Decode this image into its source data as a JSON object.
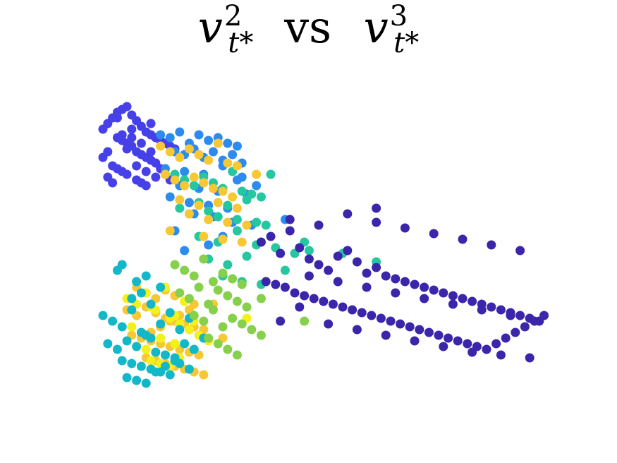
{
  "chart_data": {
    "type": "scatter",
    "title": "",
    "title_parts": {
      "left_var": "v",
      "left_sup": "2",
      "left_sub": "t*",
      "middle": "vs",
      "right_var": "v",
      "right_sup": "3",
      "right_sub": "t*"
    },
    "xlabel": "",
    "ylabel": "",
    "xlim": [
      0,
      100
    ],
    "ylim": [
      0,
      100
    ],
    "grid": false,
    "legend": "none",
    "series": [
      {
        "color": "#4640e8",
        "x": [
          5,
          6,
          7,
          8,
          9,
          10,
          11,
          12,
          13,
          14,
          15,
          16,
          17,
          18,
          19,
          20,
          8,
          9,
          10,
          11,
          12,
          13,
          14,
          15,
          16,
          7,
          8,
          9,
          10,
          12,
          13,
          14,
          5,
          6,
          11,
          15,
          17,
          18,
          9,
          10,
          12,
          14,
          16,
          19,
          8,
          11,
          13,
          6,
          7,
          15
        ],
        "y": [
          88,
          90,
          92,
          94,
          95,
          96,
          93,
          91,
          89,
          87,
          86,
          85,
          84,
          83,
          82,
          81,
          85,
          84,
          83,
          82,
          80,
          79,
          78,
          77,
          76,
          75,
          74,
          73,
          72,
          70,
          69,
          68,
          78,
          80,
          88,
          90,
          74,
          72,
          86,
          81,
          75,
          73,
          71,
          70,
          92,
          85,
          83,
          71,
          69,
          80
        ]
      },
      {
        "color": "#2d8bf0",
        "x": [
          17,
          19,
          21,
          23,
          25,
          27,
          29,
          31,
          33,
          20,
          22,
          24,
          26,
          28,
          30,
          32,
          34,
          18,
          22,
          26,
          30,
          34,
          21,
          25,
          29,
          33,
          19,
          23,
          27,
          31,
          35,
          24,
          28,
          32,
          36,
          20,
          30,
          37,
          43,
          27,
          22
        ],
        "y": [
          86,
          85,
          87,
          83,
          86,
          84,
          85,
          83,
          82,
          80,
          79,
          81,
          78,
          80,
          77,
          79,
          76,
          74,
          73,
          72,
          75,
          71,
          68,
          67,
          66,
          70,
          64,
          62,
          61,
          60,
          65,
          58,
          57,
          55,
          54,
          52,
          50,
          68,
          56,
          47,
          45
        ]
      },
      {
        "color": "#25c7a0",
        "x": [
          20,
          22,
          24,
          26,
          28,
          30,
          32,
          34,
          36,
          38,
          40,
          21,
          23,
          25,
          27,
          29,
          31,
          33,
          35,
          37,
          39,
          25,
          29,
          33,
          37,
          41,
          45,
          48,
          27,
          31,
          35,
          43,
          47,
          55,
          62,
          30,
          34,
          38
        ],
        "y": [
          72,
          70,
          68,
          71,
          69,
          67,
          73,
          66,
          65,
          64,
          72,
          60,
          58,
          62,
          59,
          57,
          61,
          56,
          63,
          55,
          54,
          50,
          48,
          52,
          47,
          46,
          44,
          45,
          42,
          40,
          43,
          38,
          48,
          44,
          41,
          36,
          34,
          33
        ]
      },
      {
        "color": "#f7c734",
        "x": [
          17,
          19,
          21,
          23,
          25,
          27,
          29,
          31,
          33,
          18,
          20,
          22,
          24,
          26,
          28,
          30,
          32,
          21,
          25,
          29,
          33,
          37,
          23,
          27,
          31,
          35,
          19,
          26,
          30,
          34,
          12,
          14,
          16,
          18,
          20,
          22,
          24,
          10,
          12,
          14,
          16,
          18,
          20,
          22,
          24,
          26,
          11,
          13,
          15,
          17,
          19,
          21,
          23,
          25,
          14,
          16,
          18,
          20,
          22,
          24,
          26,
          15,
          17,
          19,
          21,
          23,
          28,
          20,
          30
        ],
        "y": [
          82,
          80,
          78,
          81,
          79,
          77,
          83,
          76,
          75,
          72,
          70,
          68,
          71,
          69,
          67,
          66,
          64,
          63,
          61,
          62,
          60,
          72,
          58,
          56,
          55,
          54,
          52,
          50,
          49,
          48,
          32,
          30,
          28,
          31,
          29,
          27,
          26,
          24,
          22,
          25,
          23,
          21,
          20,
          19,
          18,
          17,
          15,
          14,
          13,
          12,
          11,
          10,
          9,
          8,
          7,
          6,
          5,
          4,
          3,
          2,
          1,
          16,
          18,
          20,
          22,
          24,
          26,
          12,
          14
        ]
      },
      {
        "color": "#f4f01a",
        "x": [
          10,
          12,
          14,
          16,
          18,
          20,
          22,
          24,
          11,
          13,
          15,
          17,
          19,
          21,
          23,
          25,
          27,
          12,
          14,
          16,
          18,
          20,
          15,
          17,
          19,
          21,
          35
        ],
        "y": [
          28,
          26,
          30,
          24,
          32,
          22,
          27,
          20,
          18,
          16,
          25,
          14,
          21,
          19,
          17,
          15,
          13,
          11,
          10,
          9,
          8,
          12,
          6,
          5,
          4,
          7,
          21
        ]
      },
      {
        "color": "#12b7c8",
        "x": [
          5,
          7,
          9,
          11,
          13,
          15,
          17,
          19,
          21,
          23,
          6,
          8,
          10,
          12,
          14,
          16,
          18,
          20,
          22,
          24,
          9,
          11,
          13,
          15,
          17,
          19,
          21,
          23,
          10,
          12,
          14,
          16,
          18,
          20,
          11,
          13,
          15,
          17,
          12,
          14,
          8,
          26,
          9
        ],
        "y": [
          22,
          20,
          18,
          24,
          16,
          14,
          19,
          23,
          17,
          21,
          12,
          10,
          13,
          11,
          15,
          9,
          8,
          7,
          12,
          10,
          6,
          5,
          4,
          3,
          2,
          1,
          5,
          3,
          0,
          -1,
          -2,
          2,
          4,
          6,
          28,
          30,
          26,
          32,
          34,
          36,
          38,
          14,
          40
        ]
      },
      {
        "color": "#86d04c",
        "x": [
          20,
          22,
          24,
          26,
          28,
          30,
          32,
          34,
          21,
          23,
          25,
          27,
          29,
          31,
          33,
          35,
          24,
          26,
          28,
          30,
          32,
          34,
          36,
          38,
          27,
          29,
          31,
          33,
          38,
          47
        ],
        "y": [
          40,
          38,
          36,
          42,
          34,
          37,
          35,
          33,
          30,
          28,
          32,
          26,
          31,
          29,
          27,
          25,
          22,
          20,
          24,
          18,
          21,
          19,
          17,
          15,
          14,
          12,
          10,
          8,
          28,
          20
        ]
      },
      {
        "color": "#3b25aa",
        "x": [
          38,
          40,
          42,
          44,
          46,
          48,
          50,
          52,
          54,
          56,
          58,
          60,
          62,
          64,
          66,
          68,
          70,
          72,
          74,
          76,
          78,
          80,
          82,
          84,
          86,
          88,
          90,
          92,
          94,
          96,
          39,
          41,
          43,
          45,
          47,
          49,
          51,
          53,
          55,
          57,
          59,
          61,
          63,
          65,
          67,
          69,
          71,
          73,
          75,
          77,
          79,
          81,
          83,
          85,
          87,
          89,
          91,
          93,
          95,
          97,
          44,
          50,
          56,
          62,
          68,
          74,
          80,
          86,
          92,
          48,
          54,
          60,
          66,
          72,
          78,
          84,
          90,
          42,
          52,
          58,
          64,
          70,
          76,
          82,
          88,
          94,
          46,
          62
        ],
        "y": [
          48,
          50,
          44,
          52,
          46,
          42,
          40,
          38,
          43,
          45,
          41,
          37,
          39,
          36,
          35,
          34,
          33,
          32,
          31,
          30,
          29,
          28,
          27,
          26,
          25,
          24,
          23,
          22,
          21,
          20,
          34,
          33,
          32,
          30,
          29,
          28,
          27,
          26,
          25,
          24,
          23,
          22,
          21,
          20,
          19,
          18,
          17,
          16,
          15,
          14,
          13,
          12,
          11,
          10,
          12,
          14,
          16,
          18,
          20,
          22,
          56,
          54,
          58,
          55,
          53,
          51,
          49,
          47,
          45,
          36,
          34,
          32,
          30,
          28,
          26,
          24,
          22,
          20,
          19,
          17,
          15,
          13,
          11,
          9,
          8,
          7,
          25,
          60
        ]
      }
    ]
  }
}
